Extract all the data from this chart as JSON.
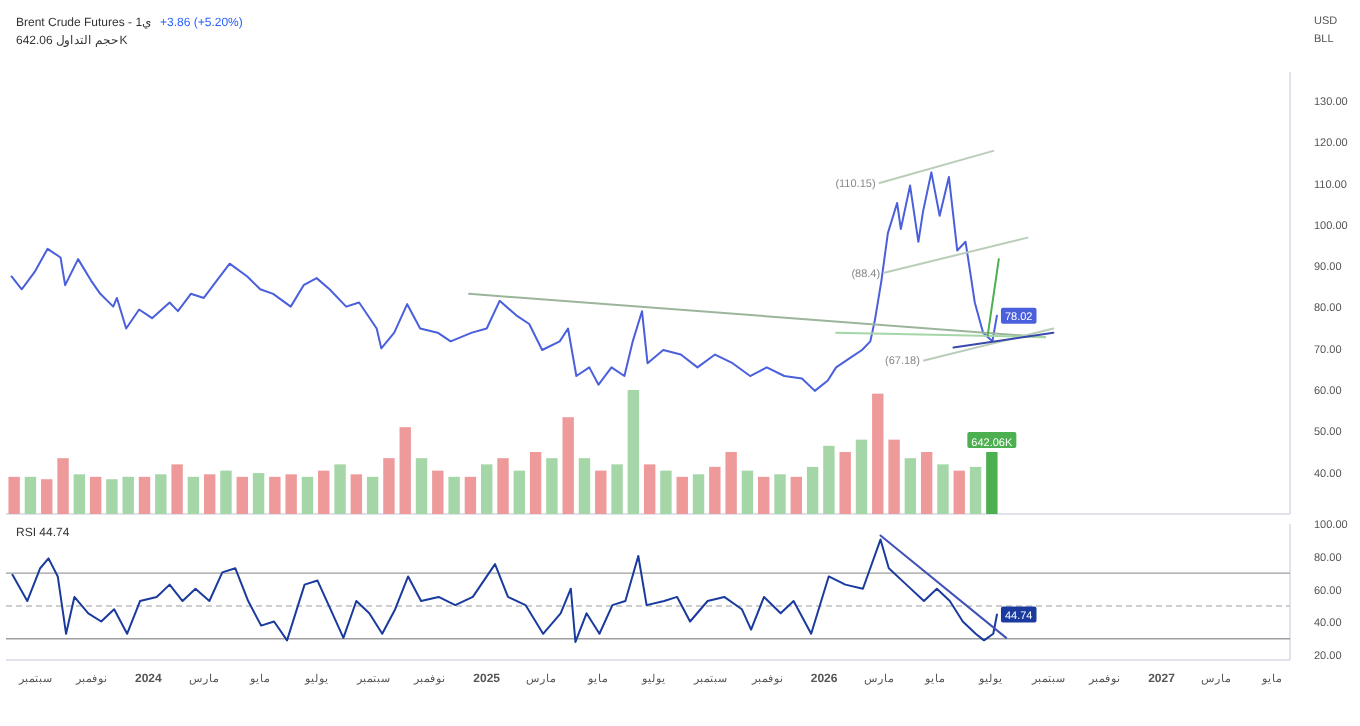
{
  "chart_data": [
    {
      "type": "line",
      "title": "Brent Crude Futures - 1ي",
      "subtitle": "+3.86 (+5.20%)",
      "annotations": [
        "USD",
        "BLL",
        {
          "text": "(110.15)",
          "x": "2026-03-02",
          "y": 110.15
        },
        {
          "text": "(88.4)",
          "x": "2026-03-07",
          "y": 88.4
        },
        {
          "text": "(67.18)",
          "x": "2026-04-19",
          "y": 67.18
        }
      ],
      "xlim": [
        "2023-07-31",
        "2027-05-20"
      ],
      "ylim": [
        30,
        137
      ],
      "yticks": [
        {
          "value": 40,
          "label": "40.00"
        },
        {
          "value": 50,
          "label": "50.00"
        },
        {
          "value": 60,
          "label": "60.00"
        },
        {
          "value": 70,
          "label": "70.00"
        },
        {
          "value": 80,
          "label": "80.00"
        },
        {
          "value": 90,
          "label": "90.00"
        },
        {
          "value": 100,
          "label": "100.00"
        },
        {
          "value": 110,
          "label": "110.00"
        },
        {
          "value": 120,
          "label": "120.00"
        },
        {
          "value": 130,
          "label": "130.00"
        }
      ],
      "tick_labels": "y",
      "series": [
        {
          "color": "#4a5fdc",
          "x": [
            "2023-08-06",
            "2023-08-17",
            "2023-08-31",
            "2023-09-14",
            "2023-09-28",
            "2023-10-03",
            "2023-10-17",
            "2023-10-31",
            "2023-11-10",
            "2023-11-24",
            "2023-11-28",
            "2023-12-08",
            "2023-12-22",
            "2024-01-05",
            "2024-01-24",
            "2024-02-02",
            "2024-02-16",
            "2024-03-01",
            "2024-03-15",
            "2024-03-29",
            "2024-04-17",
            "2024-05-01",
            "2024-05-15",
            "2024-06-03",
            "2024-06-17",
            "2024-07-01",
            "2024-07-15",
            "2024-08-02",
            "2024-08-16",
            "2024-09-04",
            "2024-09-09",
            "2024-09-23",
            "2024-10-07",
            "2024-10-21",
            "2024-11-09",
            "2024-11-23",
            "2024-12-16",
            "2025-01-01",
            "2025-01-15",
            "2025-02-02",
            "2025-02-16",
            "2025-03-02",
            "2025-03-21",
            "2025-03-30",
            "2025-04-08",
            "2025-04-22",
            "2025-05-02",
            "2025-05-16",
            "2025-05-30",
            "2025-06-08",
            "2025-06-18",
            "2025-06-24",
            "2025-07-11",
            "2025-07-30",
            "2025-08-17",
            "2025-09-05",
            "2025-09-24",
            "2025-10-13",
            "2025-10-31",
            "2025-11-19",
            "2025-12-08",
            "2025-12-22",
            "2026-01-05",
            "2026-01-14",
            "2026-01-28",
            "2026-02-11",
            "2026-02-20",
            "2026-02-25",
            "2026-03-04",
            "2026-03-11",
            "2026-03-21",
            "2026-03-25",
            "2026-04-04",
            "2026-04-13",
            "2026-04-18",
            "2026-04-27",
            "2026-05-06",
            "2026-05-16",
            "2026-05-25",
            "2026-06-03",
            "2026-06-08",
            "2026-06-13",
            "2026-06-22",
            "2026-07-02",
            "2026-07-07"
          ],
          "values": [
            87.5,
            84.4,
            88.6,
            94.2,
            92.1,
            85.4,
            91.7,
            86.5,
            83.3,
            80.2,
            82.3,
            74.9,
            79.5,
            77.4,
            81.2,
            79.1,
            83.3,
            82.3,
            86.5,
            90.6,
            87.5,
            84.4,
            83.3,
            80.2,
            85.4,
            87.1,
            84.4,
            80.2,
            81.2,
            74.9,
            70.1,
            73.9,
            80.8,
            74.9,
            73.9,
            71.8,
            73.9,
            74.9,
            81.6,
            78.1,
            76.0,
            69.7,
            71.8,
            74.9,
            63.4,
            65.5,
            61.3,
            65.5,
            63.4,
            71.8,
            79.1,
            66.5,
            69.7,
            68.6,
            65.5,
            68.6,
            66.5,
            63.4,
            65.5,
            63.4,
            62.8,
            59.8,
            62.3,
            65.5,
            67.6,
            69.7,
            71.8,
            77.0,
            86.5,
            98.0,
            105.3,
            99.0,
            109.5,
            95.9,
            103.2,
            112.7,
            102.2,
            111.6,
            93.8,
            95.9,
            88.6,
            81.2,
            73.9,
            71.8,
            78.02
          ],
          "value_labels": [
            null,
            null,
            null,
            null,
            null,
            null,
            null,
            null,
            null,
            null,
            null,
            null,
            null,
            null,
            null,
            null,
            null,
            null,
            null,
            null,
            null,
            null,
            null,
            null,
            null,
            null,
            null,
            null,
            null,
            null,
            null,
            null,
            null,
            null,
            null,
            null,
            null,
            null,
            null,
            null,
            null,
            null,
            null,
            null,
            null,
            null,
            null,
            null,
            null,
            null,
            null,
            null,
            null,
            null,
            null,
            null,
            null,
            null,
            null,
            null,
            null,
            null,
            null,
            null,
            null,
            null,
            null,
            null,
            null,
            null,
            null,
            null,
            null,
            null,
            null,
            null,
            null,
            null,
            null,
            null,
            null,
            null,
            null,
            null,
            "78.02"
          ]
        },
        {
          "color": "#9bb59b",
          "x": [
            "2024-12-13",
            "2026-08-28"
          ],
          "values": [
            83.3,
            72.8
          ]
        },
        {
          "color": "#b9cdb9",
          "x": [
            "2026-03-02",
            "2026-07-03"
          ],
          "values": [
            110.15,
            117.9
          ]
        },
        {
          "color": "#b9cdb9",
          "x": [
            "2026-03-07",
            "2026-08-09"
          ],
          "values": [
            88.4,
            96.9
          ]
        },
        {
          "color": "#b9cdb9",
          "x": [
            "2026-04-19",
            "2026-09-06"
          ],
          "values": [
            67.18,
            74.9
          ]
        },
        {
          "color": "#a5d6a7",
          "x": [
            "2026-01-14",
            "2026-08-28"
          ],
          "values": [
            73.9,
            72.8
          ]
        },
        {
          "color": "#3949ab",
          "x": [
            "2026-05-21",
            "2026-09-06"
          ],
          "values": [
            70.3,
            73.9
          ]
        },
        {
          "color": "#4caf50",
          "x": [
            "2026-06-27",
            "2026-07-09"
          ],
          "values": [
            73.3,
            91.7
          ]
        }
      ]
    },
    {
      "type": "bar",
      "title": "حجم التداول 642.06K",
      "categories": [
        null,
        null,
        null,
        null,
        null,
        null,
        null,
        null,
        null,
        null,
        null,
        null,
        null,
        null,
        null,
        null,
        null,
        null,
        null,
        null,
        null,
        null,
        null,
        null,
        null,
        null,
        null,
        null,
        null,
        null,
        null,
        null,
        null,
        null,
        null,
        null,
        null,
        null,
        null,
        null,
        null,
        null,
        null,
        null,
        null,
        null,
        null,
        null,
        null,
        null,
        null,
        null,
        null,
        null,
        null,
        null,
        null,
        null,
        null,
        null,
        null
      ],
      "values": [
        385,
        385,
        360,
        578,
        411,
        385,
        360,
        385,
        385,
        411,
        514,
        385,
        411,
        449,
        385,
        424,
        385,
        411,
        385,
        449,
        514,
        411,
        385,
        578,
        899,
        578,
        449,
        385,
        385,
        514,
        578,
        449,
        642,
        578,
        1002,
        578,
        449,
        514,
        1284,
        514,
        449,
        385,
        411,
        488,
        642,
        449,
        385,
        411,
        385,
        488,
        706,
        642,
        770,
        1246,
        770,
        578,
        642,
        514,
        449,
        488,
        642.06
      ],
      "colors": [
        "#ef9a9a",
        "#a5d6a7",
        "#ef9a9a",
        "#ef9a9a",
        "#a5d6a7",
        "#ef9a9a",
        "#a5d6a7",
        "#a5d6a7",
        "#ef9a9a",
        "#a5d6a7",
        "#ef9a9a",
        "#a5d6a7",
        "#ef9a9a",
        "#a5d6a7",
        "#ef9a9a",
        "#a5d6a7",
        "#ef9a9a",
        "#ef9a9a",
        "#a5d6a7",
        "#ef9a9a",
        "#a5d6a7",
        "#ef9a9a",
        "#a5d6a7",
        "#ef9a9a",
        "#ef9a9a",
        "#a5d6a7",
        "#ef9a9a",
        "#a5d6a7",
        "#ef9a9a",
        "#a5d6a7",
        "#ef9a9a",
        "#a5d6a7",
        "#ef9a9a",
        "#a5d6a7",
        "#ef9a9a",
        "#a5d6a7",
        "#ef9a9a",
        "#a5d6a7",
        "#a5d6a7",
        "#ef9a9a",
        "#a5d6a7",
        "#ef9a9a",
        "#a5d6a7",
        "#ef9a9a",
        "#ef9a9a",
        "#a5d6a7",
        "#ef9a9a",
        "#a5d6a7",
        "#ef9a9a",
        "#a5d6a7",
        "#a5d6a7",
        "#ef9a9a",
        "#a5d6a7",
        "#ef9a9a",
        "#ef9a9a",
        "#a5d6a7",
        "#ef9a9a",
        "#a5d6a7",
        "#ef9a9a",
        "#a5d6a7",
        "#4caf50"
      ],
      "value_labels": [
        null,
        null,
        null,
        null,
        null,
        null,
        null,
        null,
        null,
        null,
        null,
        null,
        null,
        null,
        null,
        null,
        null,
        null,
        null,
        null,
        null,
        null,
        null,
        null,
        null,
        null,
        null,
        null,
        null,
        null,
        null,
        null,
        null,
        null,
        null,
        null,
        null,
        null,
        null,
        null,
        null,
        null,
        null,
        null,
        null,
        null,
        null,
        null,
        null,
        null,
        null,
        null,
        null,
        null,
        null,
        null,
        null,
        null,
        null,
        null,
        "642.06K"
      ]
    },
    {
      "type": "line",
      "title": "RSI 44.74",
      "xlim": [
        "2023-07-31",
        "2027-05-20"
      ],
      "ylim": [
        17,
        100
      ],
      "yticks": [
        {
          "value": 20,
          "label": "20.00"
        },
        {
          "value": 40,
          "label": "40.00"
        },
        {
          "value": 60,
          "label": "60.00"
        },
        {
          "value": 80,
          "label": "80.00"
        },
        {
          "value": 100,
          "label": "100.00"
        }
      ],
      "xticks": [
        {
          "value": "2023-09-01",
          "label": "سبتمبر"
        },
        {
          "value": "2023-11-01",
          "label": "نوفمبر"
        },
        {
          "value": "2024-01-01",
          "label": "2024"
        },
        {
          "value": "2024-03-01",
          "label": "مارس"
        },
        {
          "value": "2024-05-01",
          "label": "مايو"
        },
        {
          "value": "2024-07-01",
          "label": "يوليو"
        },
        {
          "value": "2024-09-01",
          "label": "سبتمبر"
        },
        {
          "value": "2024-11-01",
          "label": "نوفمبر"
        },
        {
          "value": "2025-01-01",
          "label": "2025"
        },
        {
          "value": "2025-03-01",
          "label": "مارس"
        },
        {
          "value": "2025-05-01",
          "label": "مايو"
        },
        {
          "value": "2025-07-01",
          "label": "يوليو"
        },
        {
          "value": "2025-09-01",
          "label": "سبتمبر"
        },
        {
          "value": "2025-11-01",
          "label": "نوفمبر"
        },
        {
          "value": "2026-01-01",
          "label": "2026"
        },
        {
          "value": "2026-03-01",
          "label": "مارس"
        },
        {
          "value": "2026-05-01",
          "label": "مايو"
        },
        {
          "value": "2026-07-01",
          "label": "يوليو"
        },
        {
          "value": "2026-09-01",
          "label": "سبتمبر"
        },
        {
          "value": "2026-11-01",
          "label": "نوفمبر"
        },
        {
          "value": "2027-01-01",
          "label": "2027"
        },
        {
          "value": "2027-03-01",
          "label": "مارس"
        },
        {
          "value": "2027-05-01",
          "label": "مايو"
        }
      ],
      "ref_lines": [
        {
          "axis": "y",
          "value": 70,
          "color": "#9e9e9e",
          "line_style": "solid"
        },
        {
          "axis": "y",
          "value": 50,
          "color": "#bdbdbd",
          "line_style": "dashed"
        },
        {
          "axis": "y",
          "value": 30,
          "color": "#9e9e9e",
          "line_style": "solid"
        }
      ],
      "series": [
        {
          "color": "#1a3a9e",
          "x": [
            "2023-08-07",
            "2023-08-23",
            "2023-09-06",
            "2023-09-15",
            "2023-09-25",
            "2023-10-04",
            "2023-10-13",
            "2023-10-28",
            "2023-11-11",
            "2023-11-25",
            "2023-12-09",
            "2023-12-23",
            "2024-01-10",
            "2024-01-24",
            "2024-02-07",
            "2024-02-21",
            "2024-03-07",
            "2024-03-21",
            "2024-04-04",
            "2024-04-18",
            "2024-05-02",
            "2024-05-16",
            "2024-05-30",
            "2024-06-18",
            "2024-07-02",
            "2024-07-16",
            "2024-07-30",
            "2024-08-13",
            "2024-08-27",
            "2024-09-10",
            "2024-09-24",
            "2024-10-08",
            "2024-10-22",
            "2024-11-10",
            "2024-11-28",
            "2024-12-17",
            "2025-01-10",
            "2025-01-24",
            "2025-02-12",
            "2025-03-03",
            "2025-03-22",
            "2025-04-02",
            "2025-04-07",
            "2025-04-19",
            "2025-05-03",
            "2025-05-17",
            "2025-05-31",
            "2025-06-14",
            "2025-06-23",
            "2025-07-12",
            "2025-07-26",
            "2025-08-09",
            "2025-08-28",
            "2025-09-15",
            "2025-10-04",
            "2025-10-14",
            "2025-10-28",
            "2025-11-15",
            "2025-11-29",
            "2025-12-18",
            "2026-01-06",
            "2026-01-24",
            "2026-02-12",
            "2026-03-03",
            "2026-03-12",
            "2026-03-31",
            "2026-04-19",
            "2026-05-03",
            "2026-05-17",
            "2026-05-31",
            "2026-06-14",
            "2026-06-23",
            "2026-07-03",
            "2026-07-07"
          ],
          "values": [
            69,
            53,
            73,
            79,
            68,
            33,
            55.5,
            45.5,
            40.5,
            48,
            33,
            53,
            55.5,
            63,
            53,
            60.5,
            53,
            70.5,
            73,
            53,
            38,
            40.5,
            29,
            63,
            65.5,
            48,
            30.5,
            53,
            45.5,
            33,
            48,
            68,
            53,
            55.5,
            50.5,
            55.5,
            75.5,
            55.5,
            50.5,
            33,
            45.5,
            60.5,
            28,
            45.5,
            33,
            50.5,
            53,
            80.5,
            50.5,
            53,
            55.5,
            40.5,
            53,
            55.5,
            48,
            35.5,
            55.5,
            45.5,
            53,
            33,
            68,
            63,
            60.5,
            90.5,
            73,
            63,
            53,
            60.5,
            53,
            40.5,
            33,
            29,
            33,
            44.74
          ],
          "value_labels": [
            null,
            null,
            null,
            null,
            null,
            null,
            null,
            null,
            null,
            null,
            null,
            null,
            null,
            null,
            null,
            null,
            null,
            null,
            null,
            null,
            null,
            null,
            null,
            null,
            null,
            null,
            null,
            null,
            null,
            null,
            null,
            null,
            null,
            null,
            null,
            null,
            null,
            null,
            null,
            null,
            null,
            null,
            null,
            null,
            null,
            null,
            null,
            null,
            null,
            null,
            null,
            null,
            null,
            null,
            null,
            null,
            null,
            null,
            null,
            null,
            null,
            null,
            null,
            null,
            null,
            null,
            null,
            null,
            null,
            null,
            null,
            null,
            null,
            "44.74"
          ]
        },
        {
          "color": "#3f51b5",
          "x": [
            "2026-03-03",
            "2026-07-17"
          ],
          "values": [
            93,
            30.5
          ]
        }
      ]
    }
  ]
}
